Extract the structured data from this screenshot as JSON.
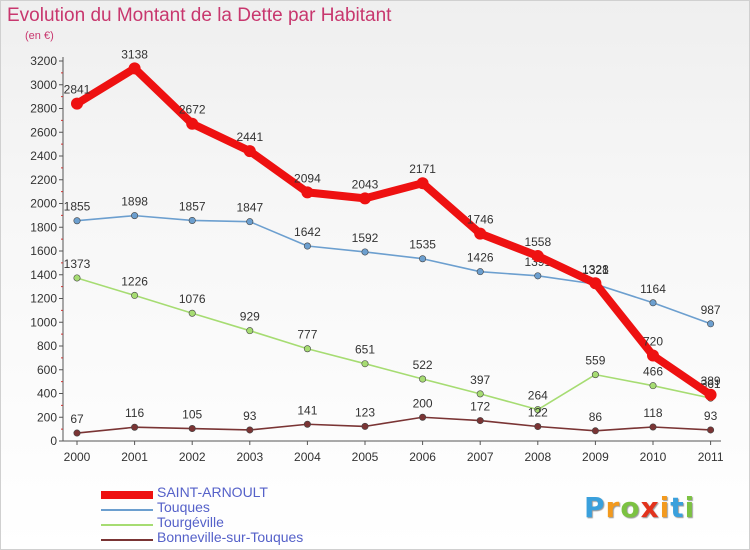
{
  "header": {
    "title": "Evolution du Montant de la Dette par Habitant",
    "subtitle": "(en €)"
  },
  "logo": {
    "letters": [
      "P",
      "r",
      "o",
      "x",
      "i",
      "t",
      "i"
    ],
    "colors": [
      "#3aa0dc",
      "#f39a1e",
      "#7cc242",
      "#e2331d",
      "#f39a1e",
      "#3aa0dc",
      "#7cc242"
    ]
  },
  "chart_data": {
    "type": "line",
    "title": "Evolution du Montant de la Dette par Habitant",
    "subtitle": "(en €)",
    "xlabel": "",
    "ylabel": "",
    "x": [
      "2000",
      "2001",
      "2002",
      "2003",
      "2004",
      "2005",
      "2006",
      "2007",
      "2008",
      "2009",
      "2010",
      "2011"
    ],
    "ylim": [
      0,
      3200
    ],
    "yticks": [
      0,
      200,
      400,
      600,
      800,
      1000,
      1200,
      1400,
      1600,
      1800,
      2000,
      2200,
      2400,
      2600,
      2800,
      3000,
      3200
    ],
    "grid": false,
    "legend_position": "bottom-left",
    "series": [
      {
        "name": "SAINT-ARNOULT",
        "color": "#ee1111",
        "bold": true,
        "values": [
          2841,
          3138,
          2672,
          2441,
          2094,
          2043,
          2171,
          1746,
          1558,
          1328,
          720,
          389
        ]
      },
      {
        "name": "Touques",
        "color": "#6c9fcf",
        "bold": false,
        "values": [
          1855,
          1898,
          1857,
          1847,
          1642,
          1592,
          1535,
          1426,
          1391,
          1321,
          1164,
          987
        ]
      },
      {
        "name": "Tourgéville",
        "color": "#a6dc72",
        "bold": false,
        "values": [
          1373,
          1226,
          1076,
          929,
          777,
          651,
          522,
          397,
          264,
          559,
          466,
          361
        ]
      },
      {
        "name": "Bonneville-sur-Touques",
        "color": "#7a3434",
        "bold": false,
        "values": [
          67,
          116,
          105,
          93,
          141,
          123,
          200,
          172,
          122,
          86,
          118,
          93
        ]
      }
    ]
  }
}
